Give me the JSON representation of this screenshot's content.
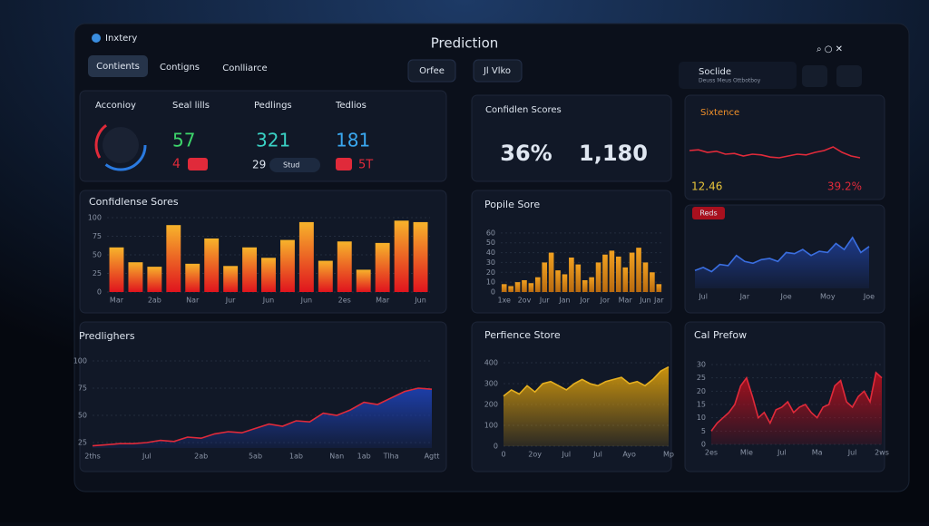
{
  "header": {
    "app": "Inxtery",
    "title": "Prediction",
    "tabs": [
      "Contients",
      "Contigns",
      "Conlliarce"
    ],
    "buttons": [
      "Orfee",
      "Jl Vlko"
    ],
    "user": "Soclide",
    "user_sub": "Deuss Meus Ottbotboy"
  },
  "stats": {
    "title": "Acconioy",
    "items": [
      {
        "label": "Seal lills",
        "value": "57",
        "sub": "4"
      },
      {
        "label": "Pedlings",
        "value": "321",
        "sub": "29",
        "chip": "Stud"
      },
      {
        "label": "Tedlios",
        "value": "181",
        "sub": "5T"
      }
    ]
  },
  "confidence": {
    "title": "Confidlen Scores",
    "values": [
      "36%",
      "1,180"
    ]
  },
  "sixtence": {
    "title": "Sixtence",
    "left": "12.46",
    "right": "39.2%"
  },
  "charts": [
    {
      "type": "bar",
      "title": "Confidlense Sores",
      "categories": [
        "Mar",
        null,
        "2ab",
        null,
        "Nar",
        null,
        "Jur",
        null,
        "Jun",
        null,
        "Jun",
        null,
        "2es",
        null,
        "Mar",
        null,
        "Jun"
      ],
      "values": [
        60,
        40,
        34,
        90,
        38,
        72,
        35,
        60,
        46,
        70,
        94,
        42,
        68,
        30,
        66,
        96,
        94
      ],
      "ylim": [
        0,
        100
      ],
      "yticks": [
        0,
        25,
        50,
        75,
        100
      ],
      "color": "#f7b32b",
      "color2": "#e0141e"
    },
    {
      "type": "bar",
      "title": "Popile Sore",
      "categories": [
        "1xe",
        null,
        null,
        "2ov",
        null,
        null,
        "Jur",
        null,
        null,
        "Jan",
        null,
        null,
        "Jor",
        null,
        null,
        "Jor",
        null,
        null,
        "Mar",
        null,
        null,
        "Jun",
        null,
        "Jar"
      ],
      "values": [
        8,
        6,
        10,
        12,
        9,
        15,
        30,
        40,
        22,
        18,
        35,
        28,
        12,
        15,
        30,
        38,
        42,
        36,
        25,
        40,
        45,
        30,
        20,
        8
      ],
      "ylim": [
        0,
        70
      ],
      "yticks": [
        0,
        10,
        20,
        30,
        40,
        50,
        60
      ],
      "color": "#f0a020",
      "color2": "#b86a10"
    },
    {
      "type": "area",
      "title": "Predlighers",
      "categories": [
        "2ths",
        null,
        null,
        null,
        "Jul",
        null,
        null,
        null,
        "2ab",
        null,
        null,
        null,
        "5ab",
        null,
        null,
        "1ab",
        null,
        null,
        "Nan",
        null,
        "1ab",
        null,
        "Tlha",
        null,
        null,
        "Agtt"
      ],
      "values": [
        22,
        23,
        24,
        24,
        25,
        27,
        26,
        30,
        29,
        33,
        35,
        34,
        38,
        42,
        40,
        45,
        44,
        52,
        50,
        55,
        62,
        60,
        66,
        72,
        75,
        74
      ],
      "ylim": [
        20,
        100
      ],
      "yticks": [
        25,
        50,
        75,
        100
      ],
      "color": "#1d3ea8",
      "line_color": "#e02a3a"
    },
    {
      "type": "area",
      "title": "Perfience Store",
      "categories": [
        "0",
        null,
        null,
        null,
        "2oy",
        null,
        null,
        null,
        "Jul",
        null,
        null,
        null,
        "Jul",
        null,
        null,
        null,
        "Ayo",
        null,
        null,
        null,
        null,
        "Mp"
      ],
      "values": [
        240,
        270,
        250,
        290,
        260,
        300,
        310,
        290,
        270,
        300,
        320,
        300,
        290,
        310,
        320,
        330,
        300,
        310,
        290,
        320,
        360,
        380
      ],
      "ylim": [
        0,
        400
      ],
      "yticks": [
        0,
        100,
        200,
        300,
        400
      ],
      "color": "#c8920e",
      "line_color": "#e6b020"
    },
    {
      "type": "area",
      "title": "Cal Prefow",
      "categories": [
        "2es",
        null,
        null,
        null,
        null,
        null,
        "Mle",
        null,
        null,
        null,
        null,
        null,
        "Jul",
        null,
        null,
        null,
        null,
        null,
        "Ma",
        null,
        null,
        null,
        null,
        null,
        "Jul",
        null,
        null,
        null,
        null,
        "2ws"
      ],
      "values": [
        5,
        8,
        10,
        12,
        15,
        22,
        25,
        18,
        10,
        12,
        8,
        13,
        14,
        16,
        12,
        14,
        15,
        12,
        10,
        14,
        15,
        22,
        24,
        16,
        14,
        18,
        20,
        16,
        27,
        25
      ],
      "ylim": [
        0,
        30
      ],
      "yticks": [
        0,
        5,
        10,
        15,
        20,
        25,
        30
      ],
      "color": "#a8101e",
      "line_color": "#e02a3a"
    },
    {
      "type": "area",
      "badge": "Reds",
      "categories": [
        null,
        "Jul",
        null,
        null,
        null,
        null,
        "Jar",
        null,
        null,
        null,
        null,
        "Joe",
        null,
        null,
        null,
        null,
        "Moy",
        null,
        null,
        null,
        null,
        "Joe"
      ],
      "values": [
        30,
        35,
        28,
        40,
        38,
        55,
        45,
        42,
        48,
        50,
        45,
        60,
        58,
        65,
        55,
        62,
        60,
        75,
        65,
        85,
        60,
        70
      ],
      "ylim": [
        0,
        100
      ],
      "yticks": [],
      "color": "#1d3a8a",
      "line_color": "#3a6ee0"
    },
    {
      "type": "line",
      "values": [
        60,
        62,
        55,
        58,
        50,
        52,
        45,
        50,
        48,
        42,
        40,
        45,
        50,
        48,
        55,
        60,
        70,
        55,
        45,
        40
      ],
      "ylim": [
        0,
        100
      ],
      "yticks": [],
      "color": "#e02a3a"
    }
  ]
}
